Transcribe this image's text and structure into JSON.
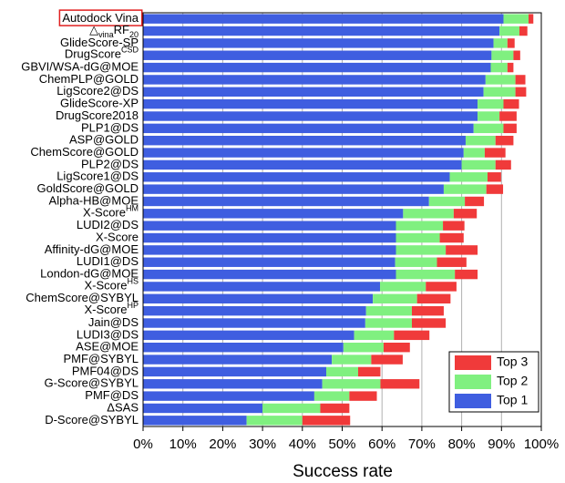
{
  "chart_data": {
    "type": "stacked-barh",
    "x_label": "Success rate",
    "categories": [
      "Autodock Vina",
      [
        "△",
        {
          "sub": "vina"
        },
        "RF",
        {
          "sub": "20"
        }
      ],
      "GlideScore-SP",
      [
        "DrugScore",
        {
          "sup": "CSD"
        }
      ],
      "GBVI/WSA-dG@MOE",
      "ChemPLP@GOLD",
      "LigScore2@DS",
      "GlideScore-XP",
      "DrugScore2018",
      "PLP1@DS",
      "ASP@GOLD",
      "ChemScore@GOLD",
      "PLP2@DS",
      "LigScore1@DS",
      "GoldScore@GOLD",
      "Alpha-HB@MOE",
      [
        "X-Score",
        {
          "sup": "HM"
        }
      ],
      "LUDI2@DS",
      "X-Score",
      "Affinity-dG@MOE",
      "LUDI1@DS",
      "London-dG@MOE",
      [
        "X-Score",
        {
          "sup": "HS"
        }
      ],
      "ChemScore@SYBYL",
      [
        "X-Score",
        {
          "sup": "HP"
        }
      ],
      "Jain@DS",
      "LUDI3@DS",
      "ASE@MOE",
      "PMF@SYBYL",
      "PMF04@DS",
      "G-Score@SYBYL",
      "PMF@DS",
      "ΔSAS",
      "D-Score@SYBYL"
    ],
    "series": [
      {
        "name": "Top 1",
        "color": "#3f5ee0",
        "values": [
          90.5,
          89.5,
          88.0,
          87.5,
          87.3,
          86.0,
          85.5,
          84.0,
          84.0,
          83.0,
          81.0,
          80.5,
          80.0,
          77.0,
          75.5,
          71.8,
          65.3,
          63.5,
          63.5,
          63.5,
          63.3,
          63.5,
          59.5,
          57.7,
          56.0,
          55.8,
          53.0,
          50.3,
          47.4,
          46.0,
          45.0,
          43.0,
          30.0,
          26.0
        ]
      },
      {
        "name": "Top 2",
        "color": "#80f080",
        "values": [
          6.3,
          5.0,
          3.5,
          5.5,
          4.2,
          7.5,
          8.0,
          6.5,
          5.5,
          7.5,
          7.5,
          5.3,
          8.5,
          9.5,
          10.7,
          9.0,
          12.7,
          11.8,
          11.0,
          12.5,
          10.5,
          14.8,
          11.5,
          11.1,
          11.5,
          11.7,
          10.0,
          10.1,
          9.9,
          8.0,
          14.6,
          8.8,
          14.5,
          14.0
        ]
      },
      {
        "name": "Top 3",
        "color": "#f03a3a",
        "values": [
          1.2,
          2.0,
          1.8,
          1.7,
          1.5,
          2.5,
          2.7,
          3.9,
          4.3,
          3.3,
          4.5,
          5.2,
          3.9,
          3.4,
          4.2,
          4.8,
          5.8,
          5.4,
          6.0,
          8.0,
          7.4,
          5.7,
          7.7,
          8.4,
          8.0,
          8.5,
          8.9,
          6.6,
          7.9,
          5.6,
          9.8,
          6.9,
          7.3,
          12.0
        ]
      }
    ],
    "xlim": [
      0,
      100
    ],
    "xticks": [
      {
        "value": 0,
        "label": "0%"
      },
      {
        "value": 10,
        "label": "10%"
      },
      {
        "value": 20,
        "label": "20%"
      },
      {
        "value": 30,
        "label": "30%"
      },
      {
        "value": 40,
        "label": "40%"
      },
      {
        "value": 50,
        "label": "50%"
      },
      {
        "value": 60,
        "label": "60%"
      },
      {
        "value": 70,
        "label": "70%"
      },
      {
        "value": 80,
        "label": "80%"
      },
      {
        "value": 90,
        "label": "90%"
      },
      {
        "value": 100,
        "label": "100%"
      }
    ],
    "grid": true,
    "legend": "lower right"
  }
}
